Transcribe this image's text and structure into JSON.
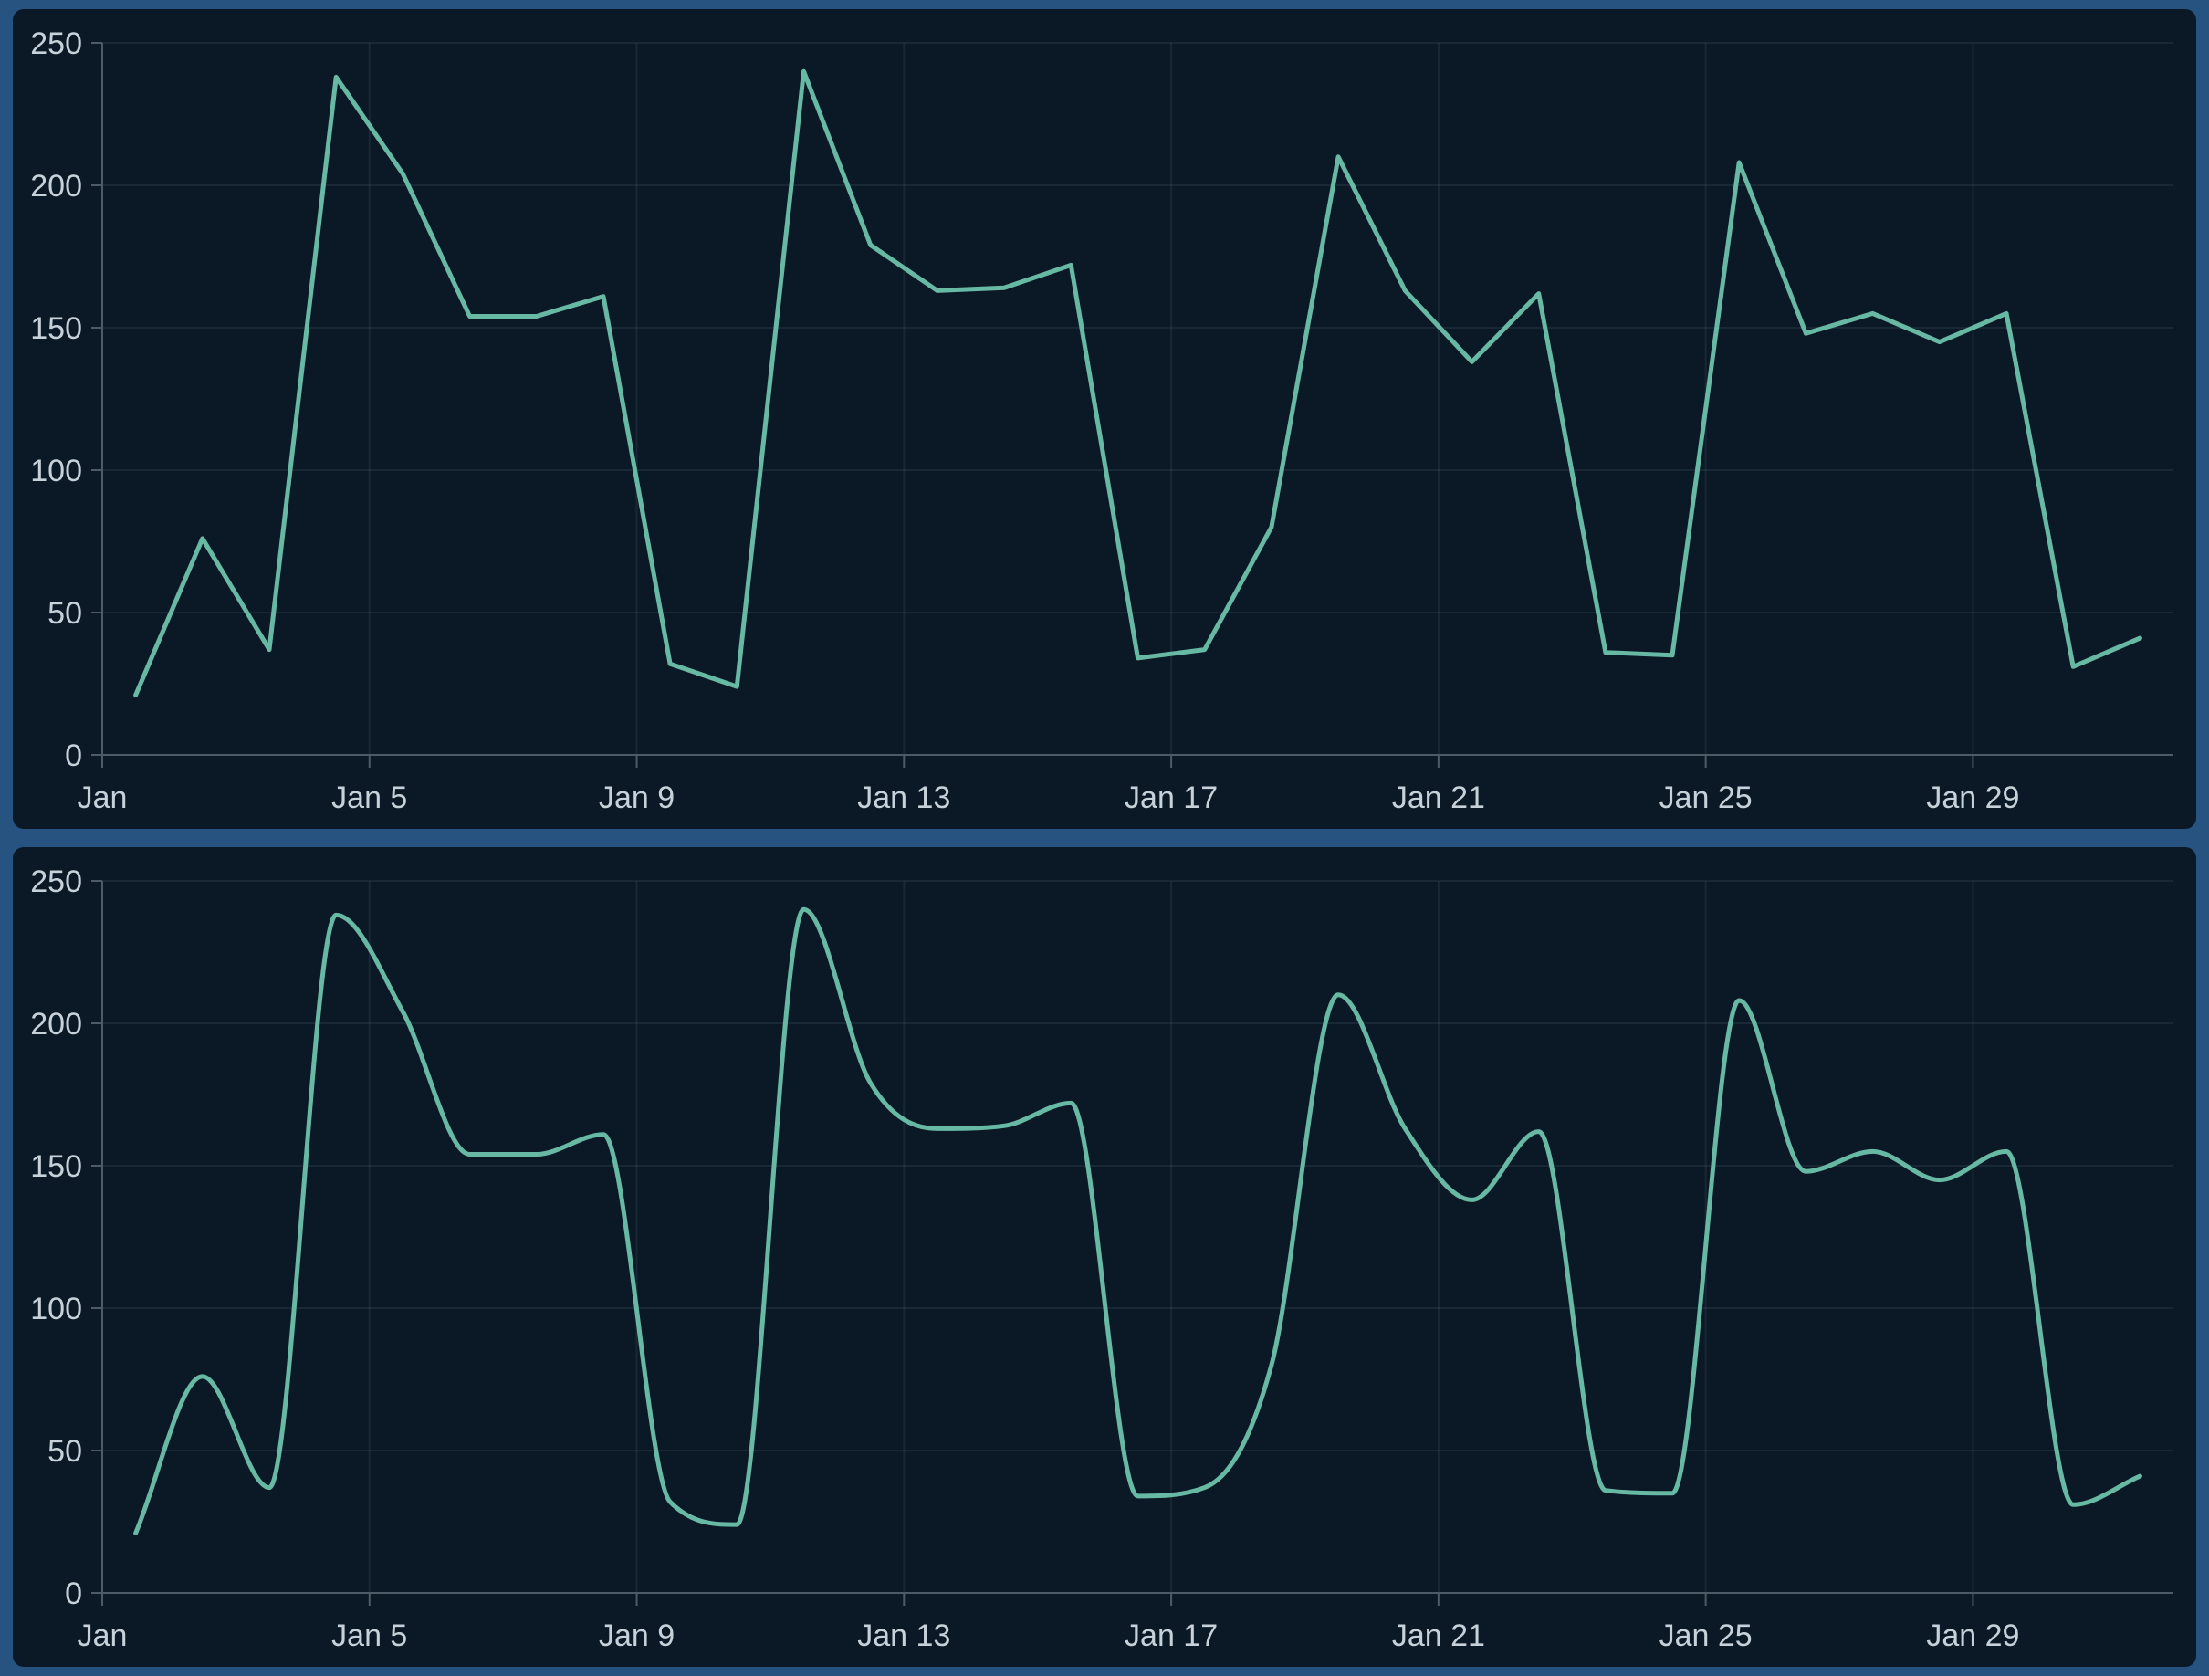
{
  "page": {
    "background_color": "#265380",
    "panel_background_color": "#0b1926"
  },
  "chart_data": [
    {
      "type": "line",
      "title": "",
      "xlabel": "",
      "ylabel": "",
      "interpolation": "linear",
      "categories": [
        "Jan 1",
        "Jan 2",
        "Jan 3",
        "Jan 4",
        "Jan 5",
        "Jan 6",
        "Jan 7",
        "Jan 8",
        "Jan 9",
        "Jan 10",
        "Jan 11",
        "Jan 12",
        "Jan 13",
        "Jan 14",
        "Jan 15",
        "Jan 16",
        "Jan 17",
        "Jan 18",
        "Jan 19",
        "Jan 20",
        "Jan 21",
        "Jan 22",
        "Jan 23",
        "Jan 24",
        "Jan 25",
        "Jan 26",
        "Jan 27",
        "Jan 28",
        "Jan 29",
        "Jan 30",
        "Jan 31"
      ],
      "values": [
        21,
        76,
        37,
        238,
        204,
        154,
        154,
        161,
        32,
        24,
        240,
        179,
        163,
        164,
        172,
        34,
        37,
        80,
        210,
        163,
        138,
        162,
        36,
        35,
        208,
        148,
        155,
        145,
        155,
        31,
        41
      ],
      "ylim": [
        0,
        250
      ],
      "y_ticks": [
        0,
        50,
        100,
        150,
        200,
        250
      ],
      "x_tick_days": [
        1,
        5,
        9,
        13,
        17,
        21,
        25,
        29
      ],
      "x_tick_labels": [
        "Jan",
        "Jan 5",
        "Jan 9",
        "Jan 13",
        "Jan 17",
        "Jan 21",
        "Jan 25",
        "Jan 29"
      ],
      "grid": true,
      "legend": false,
      "line_color": "#68b9a4",
      "line_width": 5,
      "grid_color": "rgba(186,211,227,0.08)",
      "axis_color": "#4d5b66",
      "tick_label_color": "#c7d1d9"
    },
    {
      "type": "line",
      "title": "",
      "xlabel": "",
      "ylabel": "",
      "interpolation": "monotone",
      "categories": [
        "Jan 1",
        "Jan 2",
        "Jan 3",
        "Jan 4",
        "Jan 5",
        "Jan 6",
        "Jan 7",
        "Jan 8",
        "Jan 9",
        "Jan 10",
        "Jan 11",
        "Jan 12",
        "Jan 13",
        "Jan 14",
        "Jan 15",
        "Jan 16",
        "Jan 17",
        "Jan 18",
        "Jan 19",
        "Jan 20",
        "Jan 21",
        "Jan 22",
        "Jan 23",
        "Jan 24",
        "Jan 25",
        "Jan 26",
        "Jan 27",
        "Jan 28",
        "Jan 29",
        "Jan 30",
        "Jan 31"
      ],
      "values": [
        21,
        76,
        37,
        238,
        204,
        154,
        154,
        161,
        32,
        24,
        240,
        179,
        163,
        164,
        172,
        34,
        37,
        80,
        210,
        163,
        138,
        162,
        36,
        35,
        208,
        148,
        155,
        145,
        155,
        31,
        41
      ],
      "ylim": [
        0,
        250
      ],
      "y_ticks": [
        0,
        50,
        100,
        150,
        200,
        250
      ],
      "x_tick_days": [
        1,
        5,
        9,
        13,
        17,
        21,
        25,
        29
      ],
      "x_tick_labels": [
        "Jan",
        "Jan 5",
        "Jan 9",
        "Jan 13",
        "Jan 17",
        "Jan 21",
        "Jan 25",
        "Jan 29"
      ],
      "grid": true,
      "legend": false,
      "line_color": "#68b9a4",
      "line_width": 5,
      "grid_color": "rgba(186,211,227,0.08)",
      "axis_color": "#4d5b66",
      "tick_label_color": "#c7d1d9"
    }
  ]
}
